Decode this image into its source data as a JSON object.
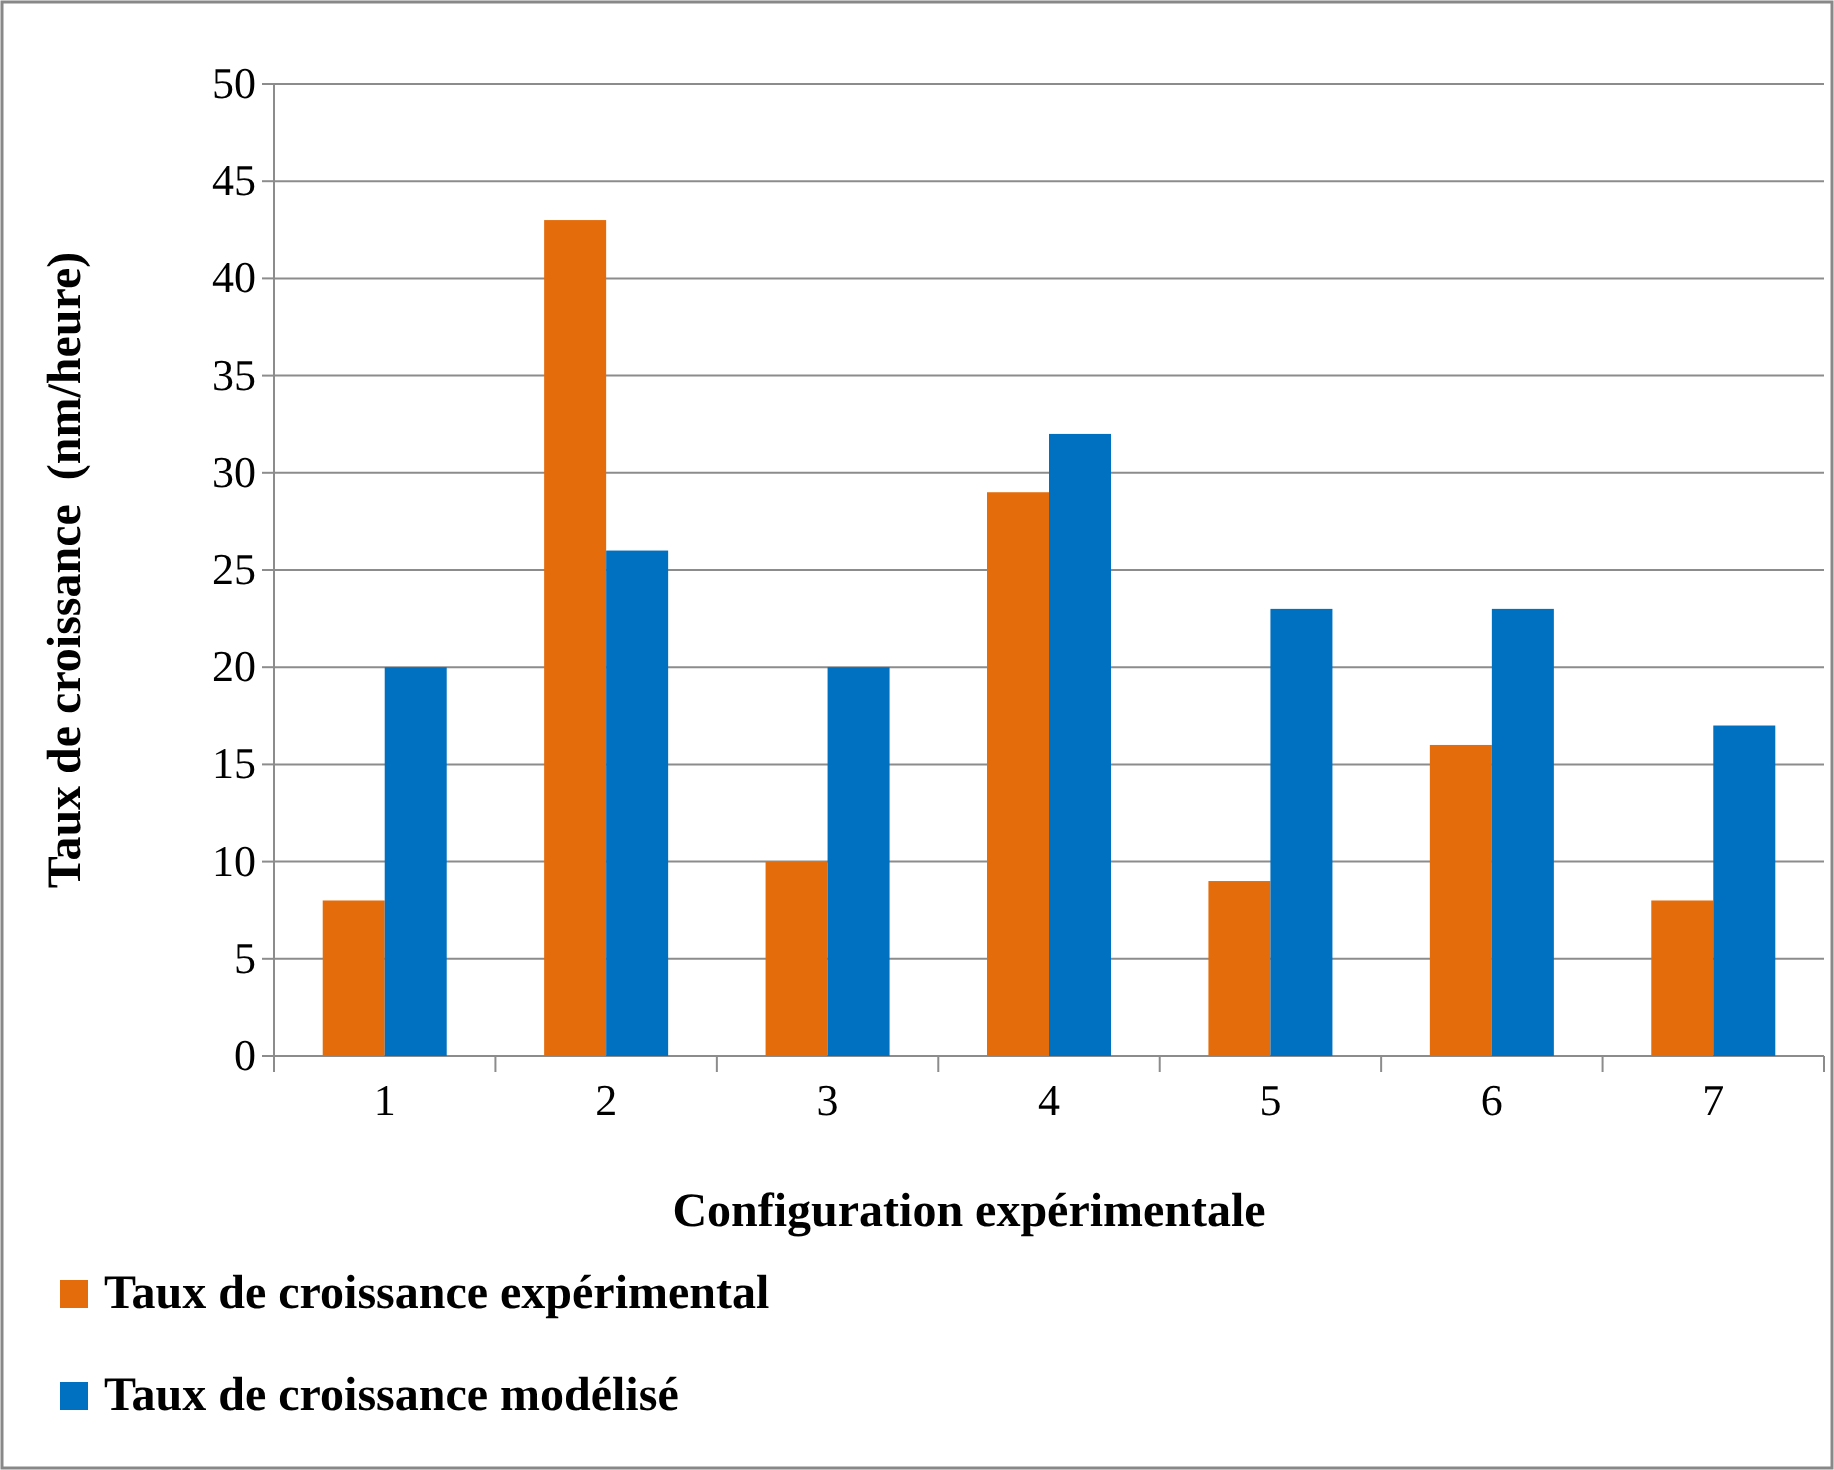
{
  "chart_data": {
    "type": "bar",
    "xlabel": "Configuration expérimentale",
    "ylabel": "Taux de croissance  (nm/heure)",
    "categories": [
      "1",
      "2",
      "3",
      "4",
      "5",
      "6",
      "7"
    ],
    "series": [
      {
        "name": "Taux de croissance expérimental",
        "color": "#e46c0a",
        "values": [
          8,
          43,
          10,
          29,
          9,
          16,
          8
        ]
      },
      {
        "name": "Taux de croissance modélisé",
        "color": "#0070c0",
        "values": [
          20,
          26,
          20,
          32,
          23,
          23,
          17
        ]
      }
    ],
    "ylim": [
      0,
      50
    ],
    "yticks": [
      0,
      5,
      10,
      15,
      20,
      25,
      30,
      35,
      40,
      45,
      50
    ],
    "grid": "y",
    "legend": "bottom"
  }
}
